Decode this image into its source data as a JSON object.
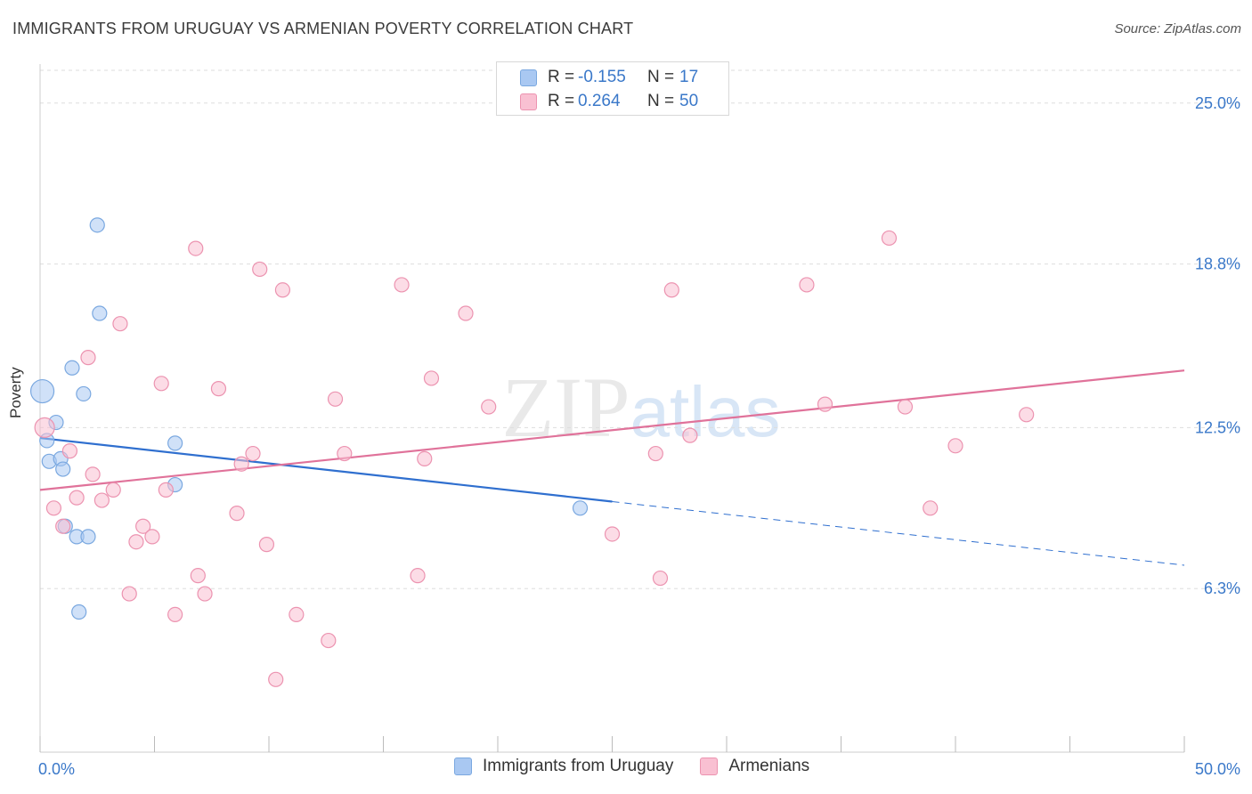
{
  "title": "IMMIGRANTS FROM URUGUAY VS ARMENIAN POVERTY CORRELATION CHART",
  "source": "Source: ZipAtlas.com",
  "watermark": "ZIPatlas",
  "legend_top": {
    "rows": [
      {
        "series": "Immigrants from Uruguay",
        "r_label": "R =",
        "r_value": "-0.155",
        "n_label": "N =",
        "n_value": "17",
        "color": "#a9c8f2",
        "border": "#7aa8e0"
      },
      {
        "series": "Armenians",
        "r_label": "R =",
        "r_value": "0.264",
        "n_label": "N =",
        "n_value": "50",
        "color": "#f9c0d2",
        "border": "#ec93b0"
      }
    ]
  },
  "legend_bottom": {
    "items": [
      {
        "label": "Immigrants from Uruguay",
        "color": "#a9c8f2",
        "border": "#7aa8e0"
      },
      {
        "label": "Armenians",
        "color": "#f9c0d2",
        "border": "#ec93b0"
      }
    ]
  },
  "chart_data": {
    "type": "scatter",
    "title": "IMMIGRANTS FROM URUGUAY VS ARMENIAN POVERTY CORRELATION CHART",
    "xlabel": "",
    "ylabel": "Poverty",
    "xlim": [
      0,
      50
    ],
    "ylim": [
      0,
      26.5
    ],
    "x_tick_labels": [
      "0.0%",
      "50.0%"
    ],
    "y_ticks": [
      6.3,
      12.5,
      18.8,
      25.0
    ],
    "y_tick_labels": [
      "6.3%",
      "12.5%",
      "18.8%",
      "25.0%"
    ],
    "grid": "horizontal dashed",
    "series": [
      {
        "name": "Immigrants from Uruguay",
        "color": "#a9c8f2",
        "stroke": "#7aa8e0",
        "line_color": "#2f6fcf",
        "points": [
          [
            0.1,
            13.9
          ],
          [
            0.3,
            12.0
          ],
          [
            0.4,
            11.2
          ],
          [
            0.7,
            12.7
          ],
          [
            0.9,
            11.3
          ],
          [
            1.0,
            10.9
          ],
          [
            1.1,
            8.7
          ],
          [
            1.4,
            14.8
          ],
          [
            1.6,
            8.3
          ],
          [
            1.7,
            5.4
          ],
          [
            1.9,
            13.8
          ],
          [
            2.1,
            8.3
          ],
          [
            2.5,
            20.3
          ],
          [
            2.6,
            16.9
          ],
          [
            5.9,
            11.9
          ],
          [
            5.9,
            10.3
          ],
          [
            23.6,
            9.4
          ]
        ],
        "sizes": [
          22,
          12,
          12,
          12,
          12,
          12,
          12,
          12,
          12,
          12,
          12,
          12,
          12,
          12,
          12,
          12,
          12
        ],
        "trend": {
          "x0": 0,
          "y0": 12.1,
          "x1": 25,
          "y1": 9.65,
          "dash_to_x": 50,
          "dash_to_y": 7.2
        }
      },
      {
        "name": "Armenians",
        "color": "#f9c0d2",
        "stroke": "#ec93b0",
        "line_color": "#e0729a",
        "points": [
          [
            0.2,
            12.5
          ],
          [
            0.6,
            9.4
          ],
          [
            1.0,
            8.7
          ],
          [
            1.3,
            11.6
          ],
          [
            1.6,
            9.8
          ],
          [
            2.1,
            15.2
          ],
          [
            2.3,
            10.7
          ],
          [
            2.7,
            9.7
          ],
          [
            3.2,
            10.1
          ],
          [
            3.5,
            16.5
          ],
          [
            3.9,
            6.1
          ],
          [
            4.2,
            8.1
          ],
          [
            4.5,
            8.7
          ],
          [
            4.9,
            8.3
          ],
          [
            5.3,
            14.2
          ],
          [
            5.5,
            10.1
          ],
          [
            5.9,
            5.3
          ],
          [
            6.8,
            19.4
          ],
          [
            6.9,
            6.8
          ],
          [
            7.2,
            6.1
          ],
          [
            7.8,
            14.0
          ],
          [
            8.6,
            9.2
          ],
          [
            8.8,
            11.1
          ],
          [
            9.3,
            11.5
          ],
          [
            9.6,
            18.6
          ],
          [
            9.9,
            8.0
          ],
          [
            10.3,
            2.8
          ],
          [
            10.6,
            17.8
          ],
          [
            11.2,
            5.3
          ],
          [
            12.6,
            4.3
          ],
          [
            12.9,
            13.6
          ],
          [
            13.3,
            11.5
          ],
          [
            15.8,
            18.0
          ],
          [
            16.5,
            6.8
          ],
          [
            16.8,
            11.3
          ],
          [
            17.1,
            14.4
          ],
          [
            18.6,
            16.9
          ],
          [
            19.6,
            13.3
          ],
          [
            25.0,
            8.4
          ],
          [
            26.9,
            11.5
          ],
          [
            27.1,
            6.7
          ],
          [
            27.6,
            17.8
          ],
          [
            28.4,
            12.2
          ],
          [
            33.5,
            18.0
          ],
          [
            34.3,
            13.4
          ],
          [
            37.1,
            19.8
          ],
          [
            37.8,
            13.3
          ],
          [
            38.9,
            9.4
          ],
          [
            40.0,
            11.8
          ],
          [
            43.1,
            13.0
          ]
        ],
        "sizes": [
          18,
          12,
          12,
          12,
          12,
          12,
          12,
          12,
          12,
          12,
          12,
          12,
          12,
          12,
          12,
          12,
          12,
          12,
          12,
          12,
          12,
          12,
          12,
          12,
          12,
          12,
          12,
          12,
          12,
          12,
          12,
          12,
          12,
          12,
          12,
          12,
          12,
          12,
          12,
          12,
          12,
          12,
          12,
          12,
          12,
          12,
          12,
          12,
          12,
          12
        ],
        "trend": {
          "x0": 0,
          "y0": 10.1,
          "x1": 50,
          "y1": 14.7
        }
      }
    ]
  }
}
